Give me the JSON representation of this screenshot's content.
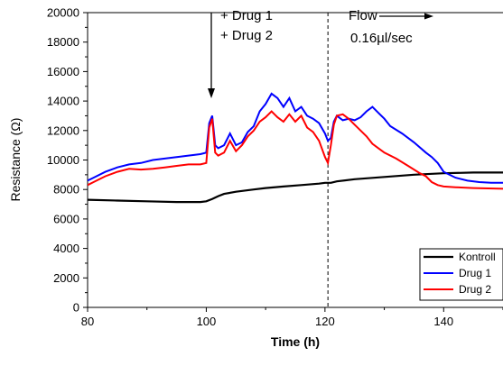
{
  "chart_data": {
    "type": "line",
    "title": "",
    "xlabel": "Time (h)",
    "ylabel": "Resistance (Ω)",
    "xlim": [
      80,
      150
    ],
    "ylim": [
      0,
      20000
    ],
    "x_ticks": [
      80,
      100,
      120,
      140
    ],
    "x_tick_labels": [
      "80",
      "100",
      "120",
      "140"
    ],
    "y_ticks": [
      0,
      2000,
      4000,
      6000,
      8000,
      10000,
      12000,
      14000,
      16000,
      18000,
      20000
    ],
    "y_tick_labels": [
      "0",
      "2000",
      "4000",
      "6000",
      "8000",
      "10000",
      "12000",
      "14000",
      "16000",
      "18000",
      "20000"
    ],
    "grid": false,
    "legend_position": "bottom-right",
    "series": [
      {
        "name": "Kontroll",
        "color": "#000000",
        "points": [
          [
            80,
            7300
          ],
          [
            85,
            7250
          ],
          [
            90,
            7200
          ],
          [
            95,
            7150
          ],
          [
            99,
            7150
          ],
          [
            100,
            7200
          ],
          [
            101,
            7350
          ],
          [
            102,
            7550
          ],
          [
            103,
            7700
          ],
          [
            105,
            7850
          ],
          [
            108,
            8000
          ],
          [
            110,
            8100
          ],
          [
            113,
            8200
          ],
          [
            116,
            8300
          ],
          [
            119,
            8400
          ],
          [
            120,
            8450
          ],
          [
            121,
            8450
          ],
          [
            122,
            8550
          ],
          [
            125,
            8700
          ],
          [
            130,
            8850
          ],
          [
            135,
            9000
          ],
          [
            140,
            9100
          ],
          [
            145,
            9150
          ],
          [
            150,
            9150
          ]
        ]
      },
      {
        "name": "Drug 1",
        "color": "#0000ff",
        "points": [
          [
            80,
            8600
          ],
          [
            81,
            8800
          ],
          [
            83,
            9200
          ],
          [
            85,
            9500
          ],
          [
            87,
            9700
          ],
          [
            89,
            9800
          ],
          [
            91,
            10000
          ],
          [
            93,
            10100
          ],
          [
            95,
            10200
          ],
          [
            97,
            10300
          ],
          [
            99,
            10400
          ],
          [
            100,
            10500
          ],
          [
            100.5,
            12500
          ],
          [
            101,
            13000
          ],
          [
            101.5,
            11000
          ],
          [
            102,
            10800
          ],
          [
            103,
            11000
          ],
          [
            104,
            11800
          ],
          [
            105,
            11000
          ],
          [
            106,
            11200
          ],
          [
            107,
            11900
          ],
          [
            108,
            12300
          ],
          [
            109,
            13300
          ],
          [
            110,
            13800
          ],
          [
            111,
            14500
          ],
          [
            112,
            14200
          ],
          [
            113,
            13600
          ],
          [
            114,
            14200
          ],
          [
            115,
            13300
          ],
          [
            116,
            13600
          ],
          [
            117,
            13000
          ],
          [
            118,
            12800
          ],
          [
            119,
            12500
          ],
          [
            120,
            11800
          ],
          [
            120.5,
            11300
          ],
          [
            121,
            11500
          ],
          [
            121.5,
            12600
          ],
          [
            122,
            13000
          ],
          [
            123,
            12700
          ],
          [
            124,
            12800
          ],
          [
            125,
            12700
          ],
          [
            126,
            12900
          ],
          [
            127,
            13300
          ],
          [
            128,
            13600
          ],
          [
            129,
            13200
          ],
          [
            130,
            12800
          ],
          [
            131,
            12300
          ],
          [
            133,
            11800
          ],
          [
            135,
            11200
          ],
          [
            137,
            10500
          ],
          [
            138,
            10200
          ],
          [
            139,
            9800
          ],
          [
            140,
            9200
          ],
          [
            142,
            8800
          ],
          [
            144,
            8600
          ],
          [
            146,
            8500
          ],
          [
            148,
            8450
          ],
          [
            150,
            8450
          ]
        ]
      },
      {
        "name": "Drug 2",
        "color": "#ff0000",
        "points": [
          [
            80,
            8300
          ],
          [
            81,
            8500
          ],
          [
            83,
            8900
          ],
          [
            85,
            9200
          ],
          [
            87,
            9400
          ],
          [
            89,
            9350
          ],
          [
            91,
            9400
          ],
          [
            93,
            9500
          ],
          [
            95,
            9600
          ],
          [
            97,
            9700
          ],
          [
            99,
            9700
          ],
          [
            100,
            9800
          ],
          [
            100.5,
            12200
          ],
          [
            101,
            12800
          ],
          [
            101.5,
            10500
          ],
          [
            102,
            10300
          ],
          [
            103,
            10500
          ],
          [
            104,
            11300
          ],
          [
            105,
            10600
          ],
          [
            106,
            11000
          ],
          [
            107,
            11600
          ],
          [
            108,
            12000
          ],
          [
            109,
            12600
          ],
          [
            110,
            12900
          ],
          [
            111,
            13300
          ],
          [
            112,
            12900
          ],
          [
            113,
            12600
          ],
          [
            114,
            13100
          ],
          [
            115,
            12600
          ],
          [
            116,
            13000
          ],
          [
            117,
            12200
          ],
          [
            118,
            11900
          ],
          [
            119,
            11300
          ],
          [
            120,
            10200
          ],
          [
            120.5,
            9800
          ],
          [
            121,
            11000
          ],
          [
            121.5,
            12400
          ],
          [
            122,
            13000
          ],
          [
            123,
            13100
          ],
          [
            124,
            12800
          ],
          [
            125,
            12400
          ],
          [
            126,
            12000
          ],
          [
            127,
            11600
          ],
          [
            128,
            11100
          ],
          [
            129,
            10800
          ],
          [
            130,
            10500
          ],
          [
            132,
            10100
          ],
          [
            134,
            9600
          ],
          [
            136,
            9100
          ],
          [
            137,
            8900
          ],
          [
            138,
            8500
          ],
          [
            139,
            8300
          ],
          [
            140,
            8200
          ],
          [
            142,
            8150
          ],
          [
            145,
            8100
          ],
          [
            150,
            8050
          ]
        ]
      }
    ],
    "annotations": [
      {
        "lines": [
          "+ Drug 1",
          "+ Drug 2"
        ],
        "x": 100,
        "arrow": "down"
      },
      {
        "lines": [
          "Flow",
          "0.16µl/sec"
        ],
        "x": 120.5,
        "arrow": "right"
      }
    ],
    "vertical_line": {
      "x": 120.5,
      "style": "dashed"
    }
  }
}
